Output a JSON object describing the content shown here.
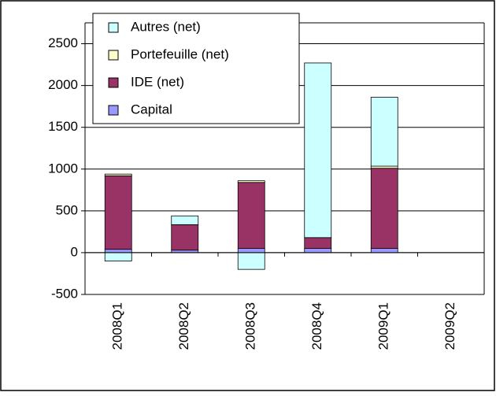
{
  "chart_data": {
    "type": "bar",
    "stacked": true,
    "categories": [
      "2008Q1",
      "2008Q2",
      "2008Q3",
      "2008Q4",
      "2009Q1",
      "2009Q2"
    ],
    "series": [
      {
        "name": "Capital",
        "color": "#9999ff",
        "values": [
          40,
          30,
          50,
          50,
          50,
          null
        ]
      },
      {
        "name": "IDE (net)",
        "color": "#993366",
        "values": [
          880,
          305,
          790,
          130,
          960,
          null
        ]
      },
      {
        "name": "Portefeuille (net)",
        "color": "#ffffcc",
        "values": [
          20,
          0,
          20,
          0,
          25,
          null
        ]
      },
      {
        "name": "Autres (net)",
        "color": "#ccffff",
        "values": [
          -100,
          105,
          -200,
          2090,
          825,
          null
        ]
      }
    ],
    "ylim": [
      -500,
      2750
    ],
    "yticks": [
      -500,
      0,
      500,
      1000,
      1500,
      2000,
      2500
    ],
    "grid": true,
    "legend": "top-left"
  }
}
